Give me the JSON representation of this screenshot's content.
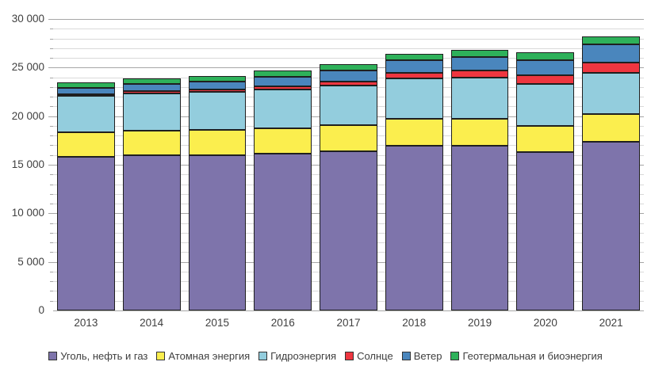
{
  "chart_data": {
    "type": "bar",
    "stacked": true,
    "title": "",
    "xlabel": "",
    "ylabel": "",
    "categories": [
      "2013",
      "2014",
      "2015",
      "2016",
      "2017",
      "2018",
      "2019",
      "2020",
      "2021"
    ],
    "series": [
      {
        "name": "Уголь, нефть и газ",
        "color": "#7E74AB",
        "values": [
          15850,
          15950,
          16000,
          16150,
          16400,
          17000,
          16950,
          16300,
          17400
        ]
      },
      {
        "name": "Атомная энергия",
        "color": "#FBEE4E",
        "values": [
          2480,
          2520,
          2570,
          2610,
          2650,
          2710,
          2790,
          2700,
          2810
        ]
      },
      {
        "name": "Гидроэнергия",
        "color": "#93CDDD",
        "values": [
          3800,
          3890,
          3900,
          4020,
          4070,
          4170,
          4220,
          4350,
          4290
        ]
      },
      {
        "name": "Солнце",
        "color": "#EE3640",
        "values": [
          140,
          200,
          260,
          330,
          450,
          580,
          720,
          860,
          1040
        ]
      },
      {
        "name": "Ветер",
        "color": "#4A86BD",
        "values": [
          650,
          720,
          840,
          960,
          1140,
          1270,
          1420,
          1600,
          1860
        ]
      },
      {
        "name": "Геотермальная и биоэнергия",
        "color": "#2EB15A",
        "values": [
          540,
          570,
          590,
          620,
          650,
          690,
          720,
          740,
          830
        ]
      }
    ],
    "ylim": [
      0,
      30000
    ],
    "y_major_interval": 5000,
    "y_minor_interval": 1000,
    "y_tick_labels": [
      "0",
      "5 000",
      "10 000",
      "15 000",
      "20 000",
      "25 000",
      "30 000"
    ],
    "grid": "horizontal",
    "legend_position": "bottom",
    "bar_border_color": "#1f1f1f",
    "gridline_minor_color": "#d9d9d9",
    "gridline_major_color": "#a6a6a6",
    "axis_text_color": "#404040"
  }
}
